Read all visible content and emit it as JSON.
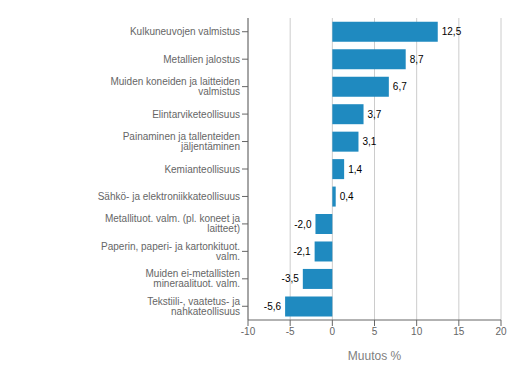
{
  "chart_data": {
    "type": "bar",
    "orientation": "horizontal",
    "categories": [
      "Tekstiili-, vaatetus- ja nahkateollisuus",
      "Muiden ei-metallisten mineraalituot. valm.",
      "Paperin, paperi- ja kartonkituot. valm.",
      "Metallituot. valm. (pl. koneet ja laitteet)",
      "Sähkö- ja elektroniikkateollisuus",
      "Kemianteollisuus",
      "Painaminen ja tallenteiden jäljentäminen",
      "Elintarviketeollisuus",
      "Muiden koneiden ja laitteiden valmistus",
      "Metallien jalostus",
      "Kulkuneuvojen valmistus"
    ],
    "values": [
      -5.6,
      -3.5,
      -2.1,
      -2.0,
      0.4,
      1.4,
      3.1,
      3.7,
      6.7,
      8.7,
      12.5
    ],
    "value_labels": [
      "-5,6",
      "-3,5",
      "-2,1",
      "-2,0",
      "0,4",
      "1,4",
      "3,1",
      "3,7",
      "6,7",
      "8,7",
      "12,5"
    ],
    "data_labels": true,
    "color": "#1f8ac0",
    "xlabel": "Muutos %",
    "xlim": [
      -10,
      20
    ],
    "xticks": [
      -10,
      -5,
      0,
      5,
      10,
      15,
      20
    ],
    "grid": true
  }
}
